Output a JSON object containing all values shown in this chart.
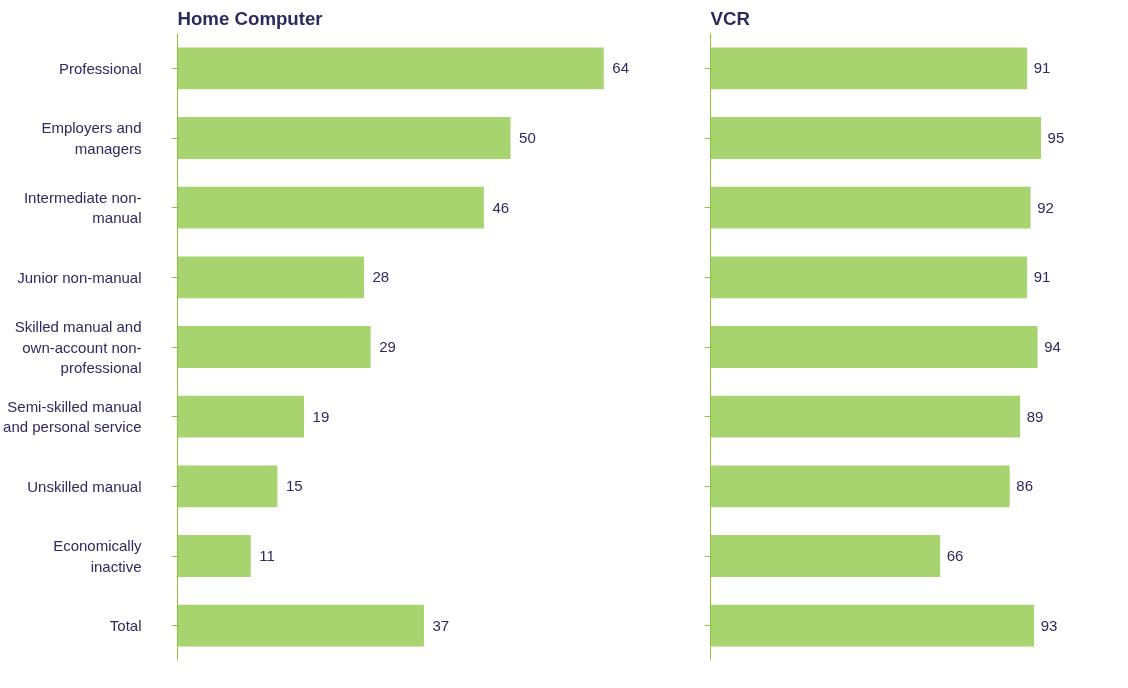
{
  "chart_data": [
    {
      "type": "bar",
      "orientation": "horizontal",
      "title": "Home Computer",
      "categories": [
        "Professional",
        "Employers and managers",
        "Intermediate non-manual",
        "Junior non-manual",
        "Skilled manual and own-account non-professional",
        "Semi-skilled manual and personal service",
        "Unskilled manual",
        "Economically inactive",
        "Total"
      ],
      "values": [
        64,
        50,
        46,
        28,
        29,
        19,
        15,
        11,
        37
      ],
      "color": "#a8d46f",
      "data_labels": true,
      "grid": false
    },
    {
      "type": "bar",
      "orientation": "horizontal",
      "title": "VCR",
      "categories": [
        "Professional",
        "Employers and managers",
        "Intermediate non-manual",
        "Junior non-manual",
        "Skilled manual and own-account non-professional",
        "Semi-skilled manual and personal service",
        "Unskilled manual",
        "Economically inactive",
        "Total"
      ],
      "values": [
        91,
        95,
        92,
        91,
        94,
        89,
        86,
        66,
        93
      ],
      "color": "#a8d46f",
      "data_labels": true,
      "grid": false,
      "tick_labels": false
    }
  ]
}
